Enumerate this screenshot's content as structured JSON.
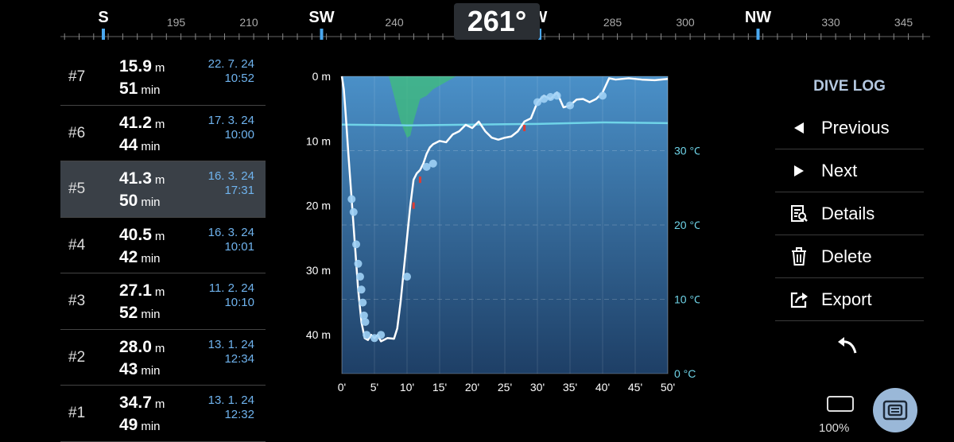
{
  "compass": {
    "heading": "261°",
    "cardinal_labels": [
      "S",
      "SW",
      "W",
      "NW"
    ],
    "degree_labels": [
      "195",
      "210",
      "240",
      "285",
      "300",
      "330",
      "345"
    ]
  },
  "dives": [
    {
      "num": "#7",
      "depth": "15.9",
      "depth_unit": "m",
      "time": "51",
      "time_unit": "min",
      "date": "22. 7. 24",
      "clock": "10:52"
    },
    {
      "num": "#6",
      "depth": "41.2",
      "depth_unit": "m",
      "time": "44",
      "time_unit": "min",
      "date": "17. 3. 24",
      "clock": "10:00"
    },
    {
      "num": "#5",
      "depth": "41.3",
      "depth_unit": "m",
      "time": "50",
      "time_unit": "min",
      "date": "16. 3. 24",
      "clock": "17:31"
    },
    {
      "num": "#4",
      "depth": "40.5",
      "depth_unit": "m",
      "time": "42",
      "time_unit": "min",
      "date": "16. 3. 24",
      "clock": "10:01"
    },
    {
      "num": "#3",
      "depth": "27.1",
      "depth_unit": "m",
      "time": "52",
      "time_unit": "min",
      "date": "11. 2. 24",
      "clock": "10:10"
    },
    {
      "num": "#2",
      "depth": "28.0",
      "depth_unit": "m",
      "time": "43",
      "time_unit": "min",
      "date": "13. 1. 24",
      "clock": "12:34"
    },
    {
      "num": "#1",
      "depth": "34.7",
      "depth_unit": "m",
      "time": "49",
      "time_unit": "min",
      "date": "13. 1. 24",
      "clock": "12:32"
    }
  ],
  "selected_dive": "#5",
  "chart_data": {
    "type": "line",
    "xlabel": "",
    "ylabel": "",
    "x_ticks": [
      "0'",
      "5'",
      "10'",
      "15'",
      "20'",
      "25'",
      "30'",
      "35'",
      "40'",
      "45'",
      "50'"
    ],
    "depth_ticks": [
      "0 m",
      "10 m",
      "20 m",
      "30 m",
      "40 m"
    ],
    "temp_ticks": [
      "0 °C",
      "10 °C",
      "20 °C",
      "30 °C"
    ],
    "xlim": [
      0,
      50
    ],
    "depth_lim": [
      0,
      46
    ],
    "temp_lim": [
      0,
      40
    ],
    "series": [
      {
        "kind": "depth",
        "color": "#ffffff",
        "x": [
          0,
          0.3,
          0.6,
          1,
          1.5,
          2,
          2.5,
          3,
          3.5,
          4,
          4.5,
          5,
          5.5,
          6,
          7,
          8,
          8.5,
          9,
          9.5,
          10,
          10.5,
          11,
          11.5,
          12,
          12.5,
          13,
          13.5,
          14,
          15,
          16,
          17,
          18,
          19,
          20,
          21,
          22,
          23,
          24,
          25,
          26,
          27,
          28,
          29,
          30,
          31,
          32,
          33,
          34,
          35,
          36,
          37,
          38,
          39,
          40,
          41,
          42,
          44,
          46,
          48,
          50
        ],
        "y": [
          0,
          2,
          6,
          12,
          19,
          26,
          33,
          38,
          40.5,
          40.8,
          40,
          40.5,
          40,
          41,
          40.5,
          40.6,
          39,
          35,
          30,
          25,
          20,
          16,
          15,
          14.5,
          13.5,
          12,
          11,
          10.5,
          10,
          10.2,
          9,
          8.5,
          7.5,
          8,
          7,
          8.5,
          9.5,
          9.8,
          9.5,
          9.3,
          8.5,
          7,
          6.5,
          4,
          3,
          3.5,
          2.5,
          4.8,
          4.5,
          3.6,
          3.5,
          4,
          3.5,
          2.5,
          0.3,
          0.5,
          0.3,
          0.5,
          0.6,
          0.4
        ]
      },
      {
        "kind": "temperature",
        "color": "#6fd4e8",
        "x": [
          0,
          10,
          20,
          30,
          40,
          50
        ],
        "y": [
          33.5,
          33.4,
          33.5,
          33.6,
          33.8,
          33.7
        ]
      }
    ],
    "markers_x": [
      1.5,
      1.8,
      2.2,
      2.5,
      2.8,
      3,
      3.2,
      3.4,
      3.6,
      3.8,
      5,
      6,
      10,
      13,
      14,
      30,
      31,
      32,
      33,
      35,
      40
    ],
    "markers_y": [
      19,
      21,
      26,
      29,
      31,
      33,
      35,
      37,
      38,
      40,
      40.5,
      40,
      31,
      14,
      13.5,
      4,
      3.5,
      3.2,
      3,
      4.5,
      3
    ],
    "ascent_warning_x": [
      11,
      12,
      28
    ],
    "ascent_warning_y": [
      20,
      16,
      8
    ],
    "colors": {
      "water_top": "#4a90c8",
      "water_bottom": "#1e3f66",
      "deco_area": "#3fbe7a",
      "marker": "#9fd0f5",
      "warning": "#e03c32"
    }
  },
  "menu": {
    "title": "DIVE LOG",
    "items": [
      {
        "label": "Previous",
        "icon": "triangle-left-icon"
      },
      {
        "label": "Next",
        "icon": "triangle-right-icon"
      },
      {
        "label": "Details",
        "icon": "details-icon"
      },
      {
        "label": "Delete",
        "icon": "trash-icon"
      },
      {
        "label": "Export",
        "icon": "export-icon"
      }
    ],
    "back_icon": "back-arrow-icon"
  },
  "status": {
    "battery": "100%"
  }
}
